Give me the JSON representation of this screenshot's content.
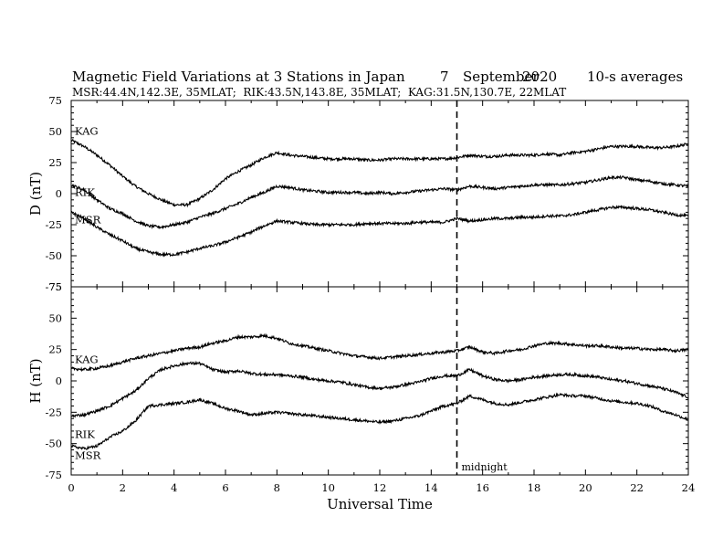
{
  "chart_data": {
    "type": "line",
    "title": "Magnetic Field Variations at 3 Stations in Japan",
    "date_day": "7",
    "date_month": "September",
    "date_year": "2020",
    "averaging": "10-s averages",
    "subtitle": "MSR:44.4N,142.3E, 35MLAT;  RIK:43.5N,143.8E, 35MLAT;  KAG:31.5N,130.7E, 22MLAT",
    "xlabel": "Universal Time",
    "xlim": [
      0,
      24
    ],
    "xticks": [
      "0",
      "2",
      "4",
      "6",
      "8",
      "10",
      "12",
      "14",
      "16",
      "18",
      "20",
      "22",
      "24"
    ],
    "midnight_marker": {
      "x": 15,
      "label": "midnight"
    },
    "panels": [
      {
        "ylabel": "D (nT)",
        "ylim": [
          -75,
          75
        ],
        "yticks": [
          "75",
          "50",
          "25",
          "0",
          "-25",
          "-50",
          "-75"
        ],
        "series": [
          {
            "name": "KAG",
            "x": [
              0,
              0.5,
              1,
              1.5,
              2,
              2.5,
              3,
              3.5,
              4,
              4.5,
              5,
              5.5,
              6,
              6.5,
              7,
              7.5,
              8,
              8.5,
              9,
              9.5,
              10,
              10.5,
              11,
              11.5,
              12,
              12.5,
              13,
              13.5,
              14,
              14.5,
              15,
              15.5,
              16,
              16.5,
              17,
              17.5,
              18,
              18.5,
              19,
              19.5,
              20,
              20.5,
              21,
              21.5,
              22,
              22.5,
              23,
              23.5,
              24
            ],
            "y": [
              43,
              38,
              31,
              23,
              14,
              6,
              0,
              -5,
              -9,
              -9,
              -4,
              3,
              12,
              18,
              23,
              29,
              33,
              31,
              30,
              29,
              28,
              28,
              28,
              27,
              27,
              28,
              28,
              28,
              28,
              28,
              29,
              31,
              30,
              30,
              31,
              31,
              31,
              32,
              31,
              33,
              34,
              36,
              38,
              38,
              38,
              37,
              37,
              38,
              40
            ]
          },
          {
            "name": "RIK",
            "x": [
              0,
              0.5,
              1,
              1.5,
              2,
              2.5,
              3,
              3.5,
              4,
              4.5,
              5,
              5.5,
              6,
              6.5,
              7,
              7.5,
              8,
              8.5,
              9,
              9.5,
              10,
              10.5,
              11,
              11.5,
              12,
              12.5,
              13,
              13.5,
              14,
              14.5,
              15,
              15.5,
              16,
              16.5,
              17,
              17.5,
              18,
              18.5,
              19,
              19.5,
              20,
              20.5,
              21,
              21.5,
              22,
              22.5,
              23,
              23.5,
              24
            ],
            "y": [
              7,
              3,
              -5,
              -12,
              -16,
              -22,
              -26,
              -27,
              -25,
              -23,
              -19,
              -16,
              -12,
              -8,
              -3,
              1,
              6,
              5,
              3,
              2,
              1,
              1,
              1,
              0,
              1,
              0,
              1,
              2,
              3,
              4,
              3,
              6,
              5,
              4,
              5,
              6,
              7,
              7,
              7,
              8,
              9,
              11,
              13,
              13,
              11,
              10,
              8,
              7,
              6
            ]
          },
          {
            "name": "MSR",
            "x": [
              0,
              0.5,
              1,
              1.5,
              2,
              2.5,
              3,
              3.5,
              4,
              4.5,
              5,
              5.5,
              6,
              6.5,
              7,
              7.5,
              8,
              8.5,
              9,
              9.5,
              10,
              10.5,
              11,
              11.5,
              12,
              12.5,
              13,
              13.5,
              14,
              14.5,
              15,
              15.5,
              16,
              16.5,
              17,
              17.5,
              18,
              18.5,
              19,
              19.5,
              20,
              20.5,
              21,
              21.5,
              22,
              22.5,
              23,
              23.5,
              24
            ],
            "y": [
              -15,
              -20,
              -27,
              -33,
              -38,
              -44,
              -47,
              -49,
              -49,
              -47,
              -44,
              -42,
              -39,
              -35,
              -31,
              -26,
              -22,
              -23,
              -24,
              -25,
              -25,
              -25,
              -25,
              -24,
              -24,
              -24,
              -24,
              -23,
              -23,
              -23,
              -20,
              -22,
              -21,
              -20,
              -20,
              -19,
              -19,
              -18,
              -18,
              -17,
              -15,
              -13,
              -11,
              -11,
              -12,
              -13,
              -15,
              -17,
              -18
            ]
          }
        ]
      },
      {
        "ylabel": "H (nT)",
        "ylim": [
          -75,
          75
        ],
        "yticks": [
          "75",
          "50",
          "25",
          "0",
          "-25",
          "-50",
          "-75"
        ],
        "series": [
          {
            "name": "KAG",
            "x": [
              0,
              0.5,
              1,
              1.5,
              2,
              2.5,
              3,
              3.5,
              4,
              4.5,
              5,
              5.5,
              6,
              6.5,
              7,
              7.5,
              8,
              8.5,
              9,
              9.5,
              10,
              10.5,
              11,
              11.5,
              12,
              12.5,
              13,
              13.5,
              14,
              14.5,
              15,
              15.5,
              16,
              16.5,
              17,
              17.5,
              18,
              18.5,
              19,
              19.5,
              20,
              20.5,
              21,
              21.5,
              22,
              22.5,
              23,
              23.5,
              24
            ],
            "y": [
              10,
              9,
              10,
              12,
              15,
              18,
              20,
              22,
              24,
              26,
              27,
              30,
              32,
              35,
              35,
              36,
              34,
              30,
              28,
              26,
              24,
              22,
              20,
              19,
              18,
              19,
              20,
              21,
              22,
              23,
              24,
              27,
              23,
              22,
              24,
              25,
              28,
              30,
              30,
              29,
              28,
              28,
              27,
              26,
              26,
              25,
              25,
              24,
              25
            ]
          },
          {
            "name": "RIK",
            "x": [
              0,
              0.5,
              1,
              1.5,
              2,
              2.5,
              3,
              3.5,
              4,
              4.5,
              5,
              5.5,
              6,
              6.5,
              7,
              7.5,
              8,
              8.5,
              9,
              9.5,
              10,
              10.5,
              11,
              11.5,
              12,
              12.5,
              13,
              13.5,
              14,
              14.5,
              15,
              15.5,
              16,
              16.5,
              17,
              17.5,
              18,
              18.5,
              19,
              19.5,
              20,
              20.5,
              21,
              21.5,
              22,
              22.5,
              23,
              23.5,
              24
            ],
            "y": [
              -28,
              -27,
              -24,
              -20,
              -14,
              -8,
              2,
              9,
              12,
              14,
              14,
              9,
              7,
              8,
              6,
              5,
              5,
              4,
              3,
              1,
              0,
              -1,
              -3,
              -5,
              -6,
              -5,
              -3,
              -1,
              2,
              4,
              4,
              9,
              4,
              1,
              0,
              1,
              3,
              4,
              5,
              5,
              4,
              3,
              1,
              0,
              -2,
              -4,
              -6,
              -9,
              -13
            ]
          },
          {
            "name": "MSR",
            "x": [
              0,
              0.5,
              1,
              1.5,
              2,
              2.5,
              3,
              3.5,
              4,
              4.5,
              5,
              5.5,
              6,
              6.5,
              7,
              7.5,
              8,
              8.5,
              9,
              9.5,
              10,
              10.5,
              11,
              11.5,
              12,
              12.5,
              13,
              13.5,
              14,
              14.5,
              15,
              15.5,
              16,
              16.5,
              17,
              17.5,
              18,
              18.5,
              19,
              19.5,
              20,
              20.5,
              21,
              21.5,
              22,
              22.5,
              23,
              23.5,
              24
            ],
            "y": [
              -52,
              -54,
              -52,
              -45,
              -40,
              -32,
              -20,
              -19,
              -18,
              -17,
              -15,
              -18,
              -22,
              -24,
              -27,
              -26,
              -25,
              -26,
              -27,
              -28,
              -29,
              -30,
              -31,
              -32,
              -33,
              -32,
              -30,
              -28,
              -24,
              -20,
              -18,
              -12,
              -15,
              -18,
              -19,
              -17,
              -15,
              -13,
              -11,
              -12,
              -12,
              -14,
              -16,
              -17,
              -18,
              -20,
              -24,
              -27,
              -31
            ]
          }
        ]
      }
    ]
  }
}
